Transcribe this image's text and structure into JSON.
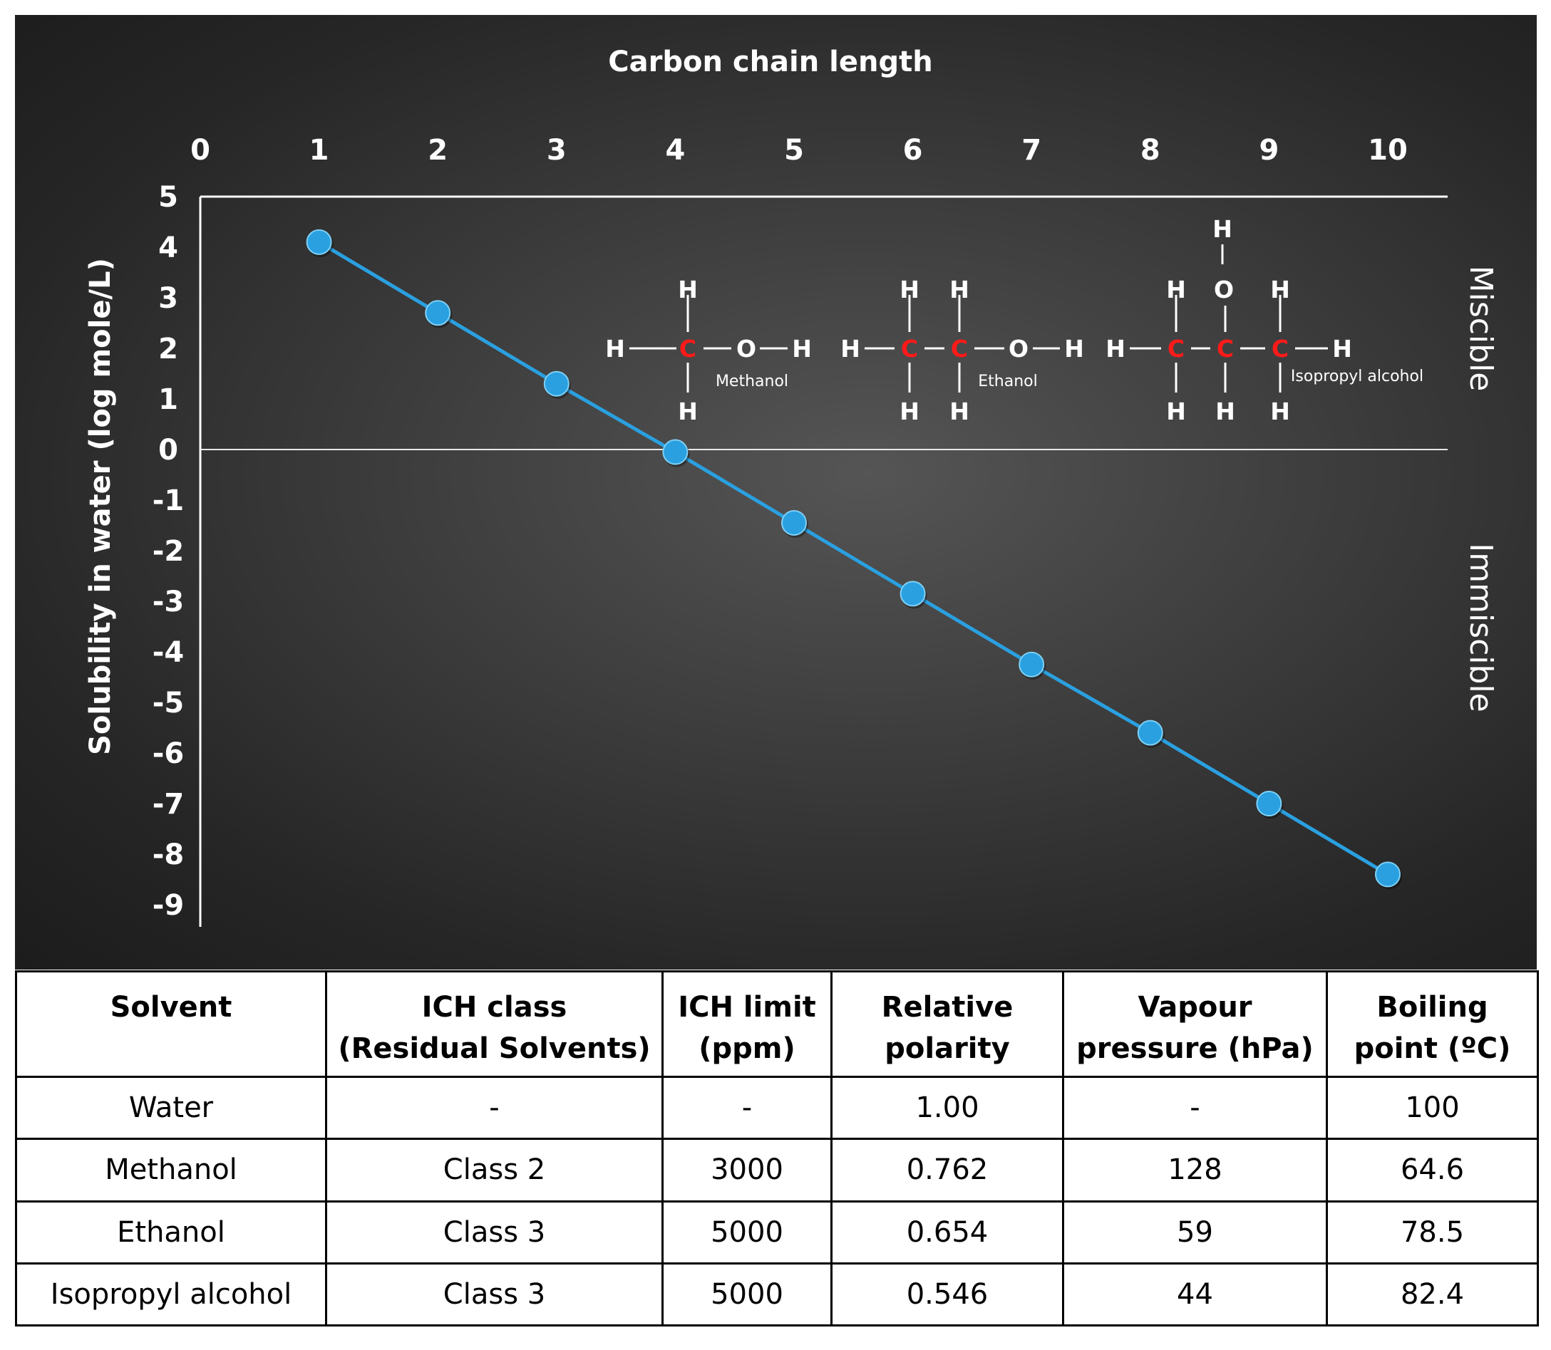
{
  "chart_data": {
    "type": "line",
    "xlabel": "Carbon chain length",
    "ylabel": "Solubility in water (log mole/L)",
    "xlim": [
      0,
      10
    ],
    "ylim": [
      -9,
      5
    ],
    "x_ticks": [
      "0",
      "1",
      "2",
      "3",
      "4",
      "5",
      "6",
      "7",
      "8",
      "9",
      "10"
    ],
    "y_ticks": [
      "5",
      "4",
      "3",
      "2",
      "1",
      "0",
      "-1",
      "-2",
      "-3",
      "-4",
      "-5",
      "-6",
      "-7",
      "-8",
      "-9"
    ],
    "x_axis_position": "top",
    "series": [
      {
        "x": [
          1,
          2,
          3,
          4,
          5,
          6,
          7,
          8,
          9,
          10
        ],
        "values": [
          4.1,
          2.7,
          1.3,
          -0.05,
          -1.45,
          -2.85,
          -4.25,
          -5.6,
          -7.0,
          -8.4
        ],
        "color": "#2aa0e0"
      }
    ],
    "zones": {
      "upper": "Miscible",
      "lower": "Immiscible"
    },
    "structures": [
      {
        "name": "Methanol"
      },
      {
        "name": "Ethanol"
      },
      {
        "name": "Isopropyl alcohol"
      }
    ],
    "atoms": {
      "hydrogen": "H",
      "carbon": "C",
      "oxygen": "O"
    }
  },
  "table": {
    "headers": [
      [
        "Solvent"
      ],
      [
        "ICH class",
        "(Residual Solvents)"
      ],
      [
        "ICH limit",
        "(ppm)"
      ],
      [
        "Relative",
        "polarity"
      ],
      [
        "Vapour",
        "pressure (hPa)"
      ],
      [
        "Boiling",
        "point (ºC)"
      ]
    ],
    "rows": [
      [
        "Water",
        "-",
        "-",
        "1.00",
        "-",
        "100"
      ],
      [
        "Methanol",
        "Class 2",
        "3000",
        "0.762",
        "128",
        "64.6"
      ],
      [
        "Ethanol",
        "Class 3",
        "5000",
        "0.654",
        "59",
        "78.5"
      ],
      [
        "Isopropyl alcohol",
        "Class 3",
        "5000",
        "0.546",
        "44",
        "82.4"
      ]
    ]
  }
}
